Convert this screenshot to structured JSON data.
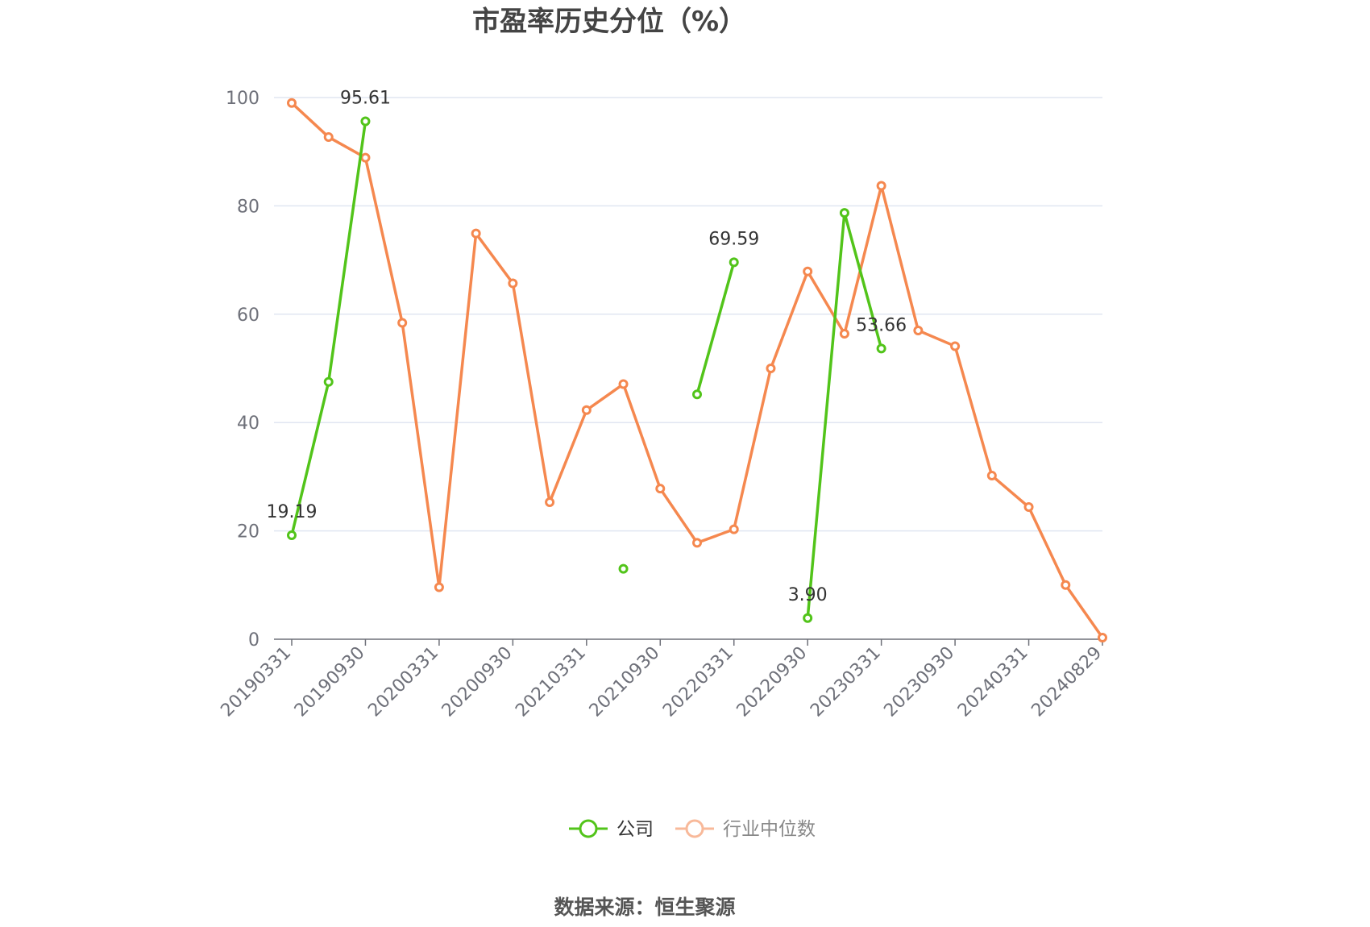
{
  "chart_data": {
    "type": "line",
    "title": "市盈率历史分位（%）",
    "x": [
      "20190331",
      "20190630",
      "20190930",
      "20191231",
      "20200331",
      "20200630",
      "20200930",
      "20201231",
      "20210331",
      "20210630",
      "20210930",
      "20211231",
      "20220331",
      "20220630",
      "20220930",
      "20221231",
      "20230331",
      "20230630",
      "20230930",
      "20231231",
      "20240331",
      "20240630",
      "20240829"
    ],
    "x_tick_labels": [
      "20190331",
      "20190930",
      "20200331",
      "20200930",
      "20210331",
      "20210930",
      "20220331",
      "20220930",
      "20230331",
      "20230930",
      "20240331",
      "20240829"
    ],
    "ylim": [
      0,
      100
    ],
    "y_ticks": [
      0,
      20,
      40,
      60,
      80,
      100
    ],
    "grid": true,
    "legend_position": "bottom",
    "series": [
      {
        "name": "公司",
        "color": "#52c41a",
        "values": [
          19.19,
          47.5,
          95.61,
          null,
          null,
          null,
          null,
          null,
          null,
          13.0,
          null,
          45.2,
          69.59,
          null,
          3.9,
          78.7,
          53.66,
          null,
          null,
          null,
          null,
          null,
          null
        ],
        "labels": {
          "0": "19.19",
          "2": "95.61",
          "12": "69.59",
          "14": "3.90",
          "16": "53.66"
        }
      },
      {
        "name": "行业中位数",
        "color": "#f5884f",
        "values": [
          99.0,
          92.7,
          88.9,
          58.4,
          9.6,
          74.9,
          65.7,
          25.3,
          42.3,
          47.1,
          27.8,
          17.8,
          20.3,
          50.0,
          67.9,
          56.4,
          83.7,
          57.0,
          54.1,
          30.2,
          24.4,
          10.0,
          0.3
        ]
      }
    ]
  },
  "legend": {
    "company": "公司",
    "industry": "行业中位数"
  },
  "footer": {
    "source": "数据来源：恒生聚源"
  }
}
